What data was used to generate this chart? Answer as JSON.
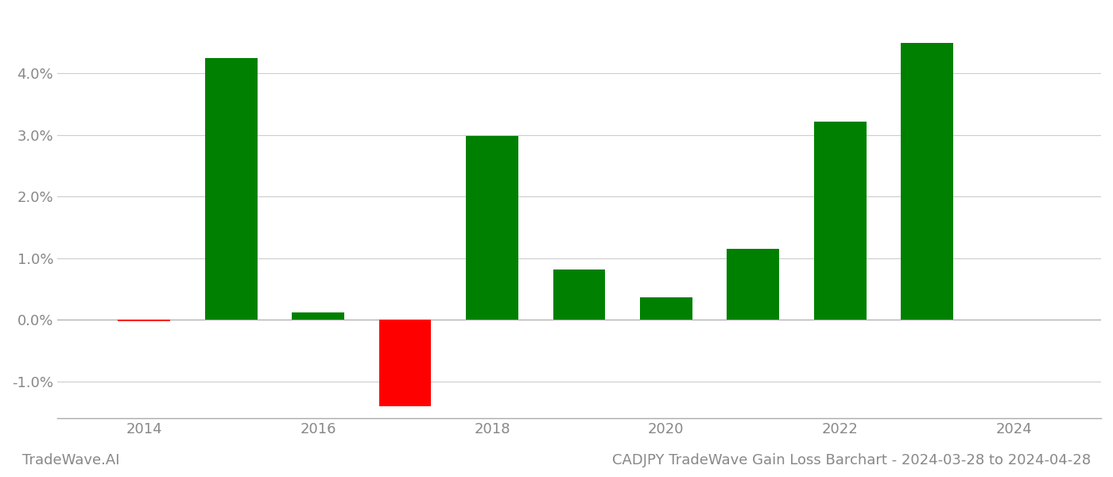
{
  "years": [
    2014,
    2015,
    2016,
    2017,
    2018,
    2019,
    2020,
    2021,
    2022,
    2023
  ],
  "values": [
    -0.0002,
    0.0425,
    0.0012,
    -0.014,
    0.0298,
    0.0082,
    0.0037,
    0.0115,
    0.0322,
    0.045
  ],
  "bar_colors_pos": "#008000",
  "bar_colors_neg": "#ff0000",
  "title": "CADJPY TradeWave Gain Loss Barchart - 2024-03-28 to 2024-04-28",
  "watermark": "TradeWave.AI",
  "background_color": "#ffffff",
  "grid_color": "#cccccc",
  "axis_label_color": "#888888",
  "bar_width": 0.6,
  "ylim_min": -0.016,
  "ylim_max": 0.05,
  "xlim_min": 2013.0,
  "xlim_max": 2025.0,
  "ytick_values": [
    -0.01,
    0.0,
    0.01,
    0.02,
    0.03,
    0.04
  ],
  "xtick_values": [
    2014,
    2016,
    2018,
    2020,
    2022,
    2024
  ],
  "title_fontsize": 13,
  "watermark_fontsize": 13,
  "tick_fontsize": 13
}
